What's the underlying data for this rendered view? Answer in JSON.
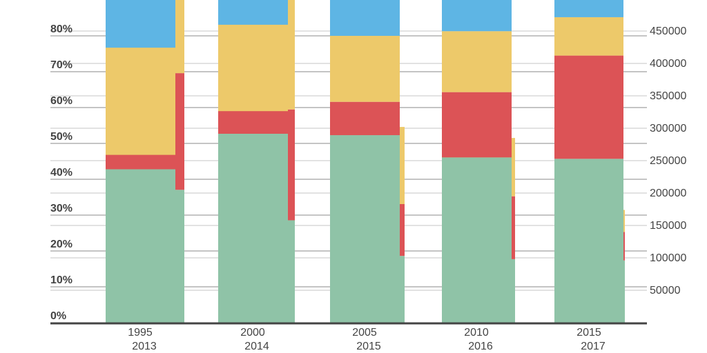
{
  "chart_data": [
    {
      "type": "bar",
      "stacked": "percent",
      "categories": [
        "1995",
        "2000",
        "2005",
        "2010",
        "2015"
      ],
      "y_ticks": [
        "0%",
        "10%",
        "20%",
        "30%",
        "40%",
        "50%",
        "60%",
        "70%",
        "80%"
      ],
      "ylim": [
        0,
        100
      ],
      "grid": true,
      "series": [
        {
          "color": "#8fc3a7",
          "values": [
            42.8,
            52.7,
            52.3,
            46.1,
            45.7
          ]
        },
        {
          "color": "#dc5356",
          "values": [
            4.0,
            6.3,
            9.3,
            18.2,
            28.8
          ]
        },
        {
          "color": "#edc96a",
          "values": [
            29.9,
            24.1,
            18.4,
            17.0,
            10.7
          ]
        },
        {
          "color": "#5eb5e4",
          "values": [
            23.3,
            16.9,
            20.0,
            18.7,
            14.8
          ]
        }
      ]
    },
    {
      "type": "bar",
      "stacked": "absolute",
      "categories": [
        "2013",
        "2014",
        "2015",
        "2016",
        "2017"
      ],
      "y_ticks": [
        "50000",
        "100000",
        "150000",
        "200000",
        "250000",
        "300000",
        "350000",
        "400000",
        "450000"
      ],
      "ylim": [
        0,
        500000
      ],
      "grid": true,
      "series": [
        {
          "color": "#8fc3a7",
          "values": [
            205000,
            158000,
            103000,
            98000,
            96000
          ]
        },
        {
          "color": "#dc5356",
          "values": [
            180000,
            171000,
            80000,
            97000,
            44000
          ]
        },
        {
          "color": "#edc96a",
          "values": [
            130000,
            190000,
            119000,
            90000,
            34000
          ]
        }
      ]
    }
  ]
}
